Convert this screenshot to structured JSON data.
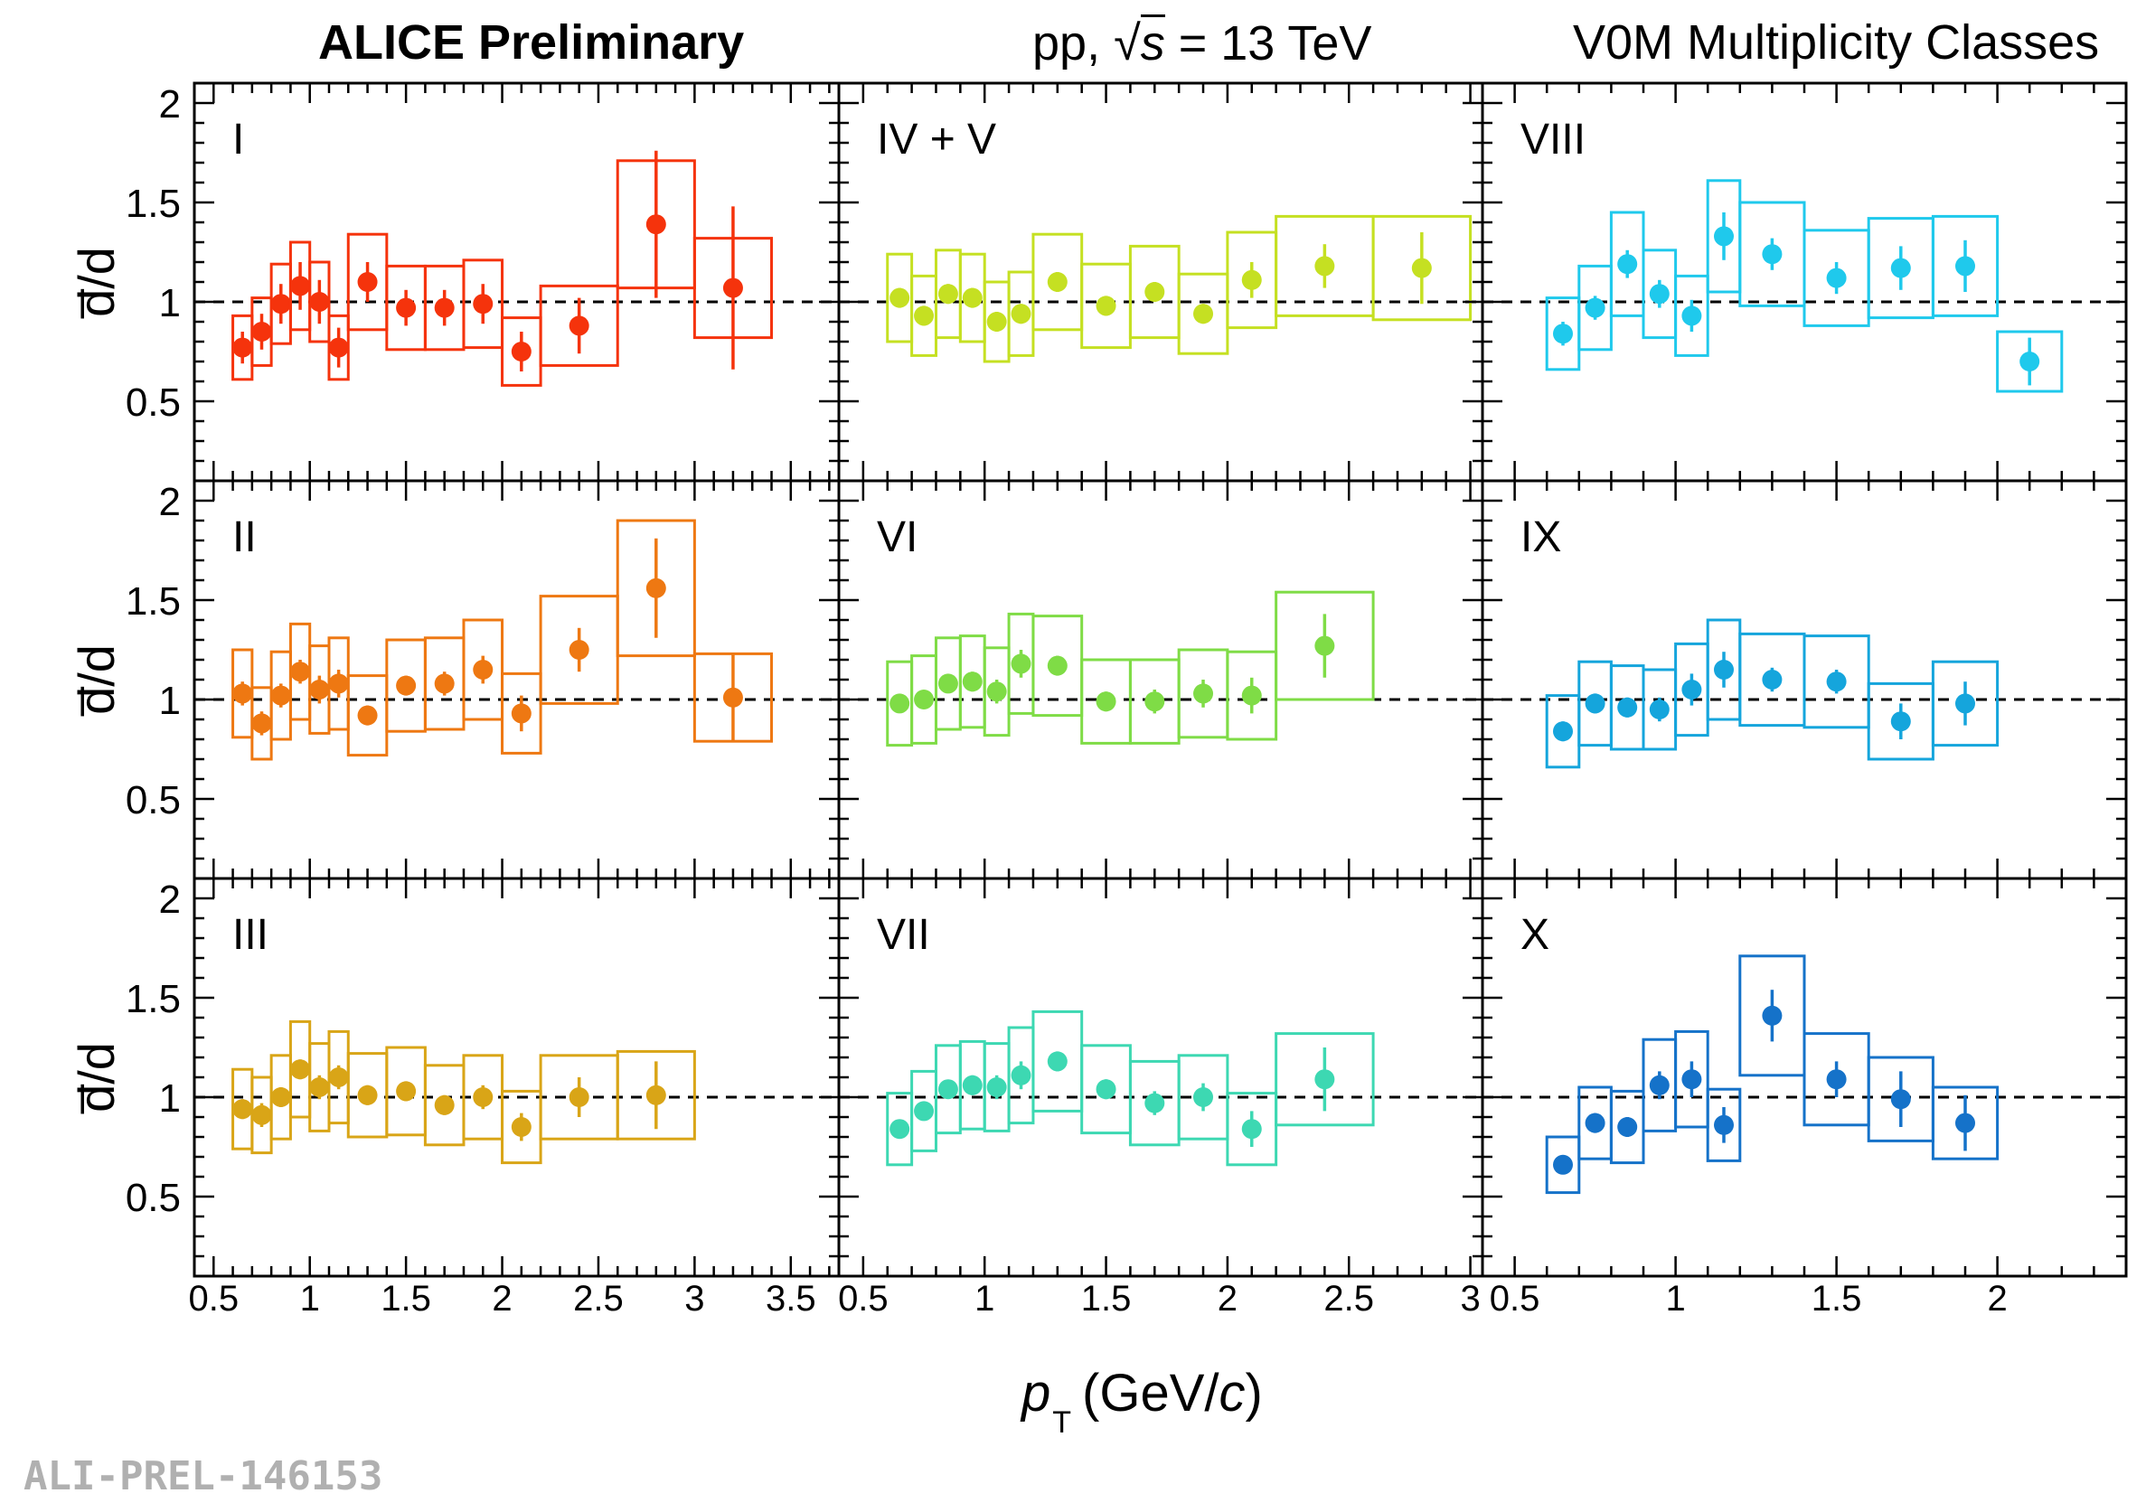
{
  "header": {
    "left": "ALICE Preliminary",
    "mid_prefix": "pp,",
    "mid_sqrt": "s",
    "mid_suffix": " = 13 TeV",
    "right": "V0M Multiplicity Classes"
  },
  "xlabel": {
    "p": "p",
    "sub": "T",
    "unit_open": "(GeV/",
    "unit_c": "c",
    "unit_close": ")"
  },
  "watermark": "ALI-PREL-146153",
  "chart_data": {
    "type": "scatter",
    "title": "ALICE Preliminary, pp, √s = 13 TeV, V0M Multiplicity Classes",
    "ylabel": "d̅/d",
    "xlabel": "pT (GeV/c)",
    "ylim": [
      0.1,
      2.1
    ],
    "yticks": [
      0.5,
      1,
      1.5,
      2
    ],
    "reference_line": 1,
    "columns": [
      {
        "xlim": [
          0.4,
          3.75
        ],
        "xticks": [
          0.5,
          1,
          1.5,
          2,
          2.5,
          3,
          3.5
        ],
        "xtick_labels": [
          "0.5",
          "1",
          "1.5",
          "2",
          "2.5",
          "3",
          "3.5"
        ]
      },
      {
        "xlim": [
          0.4,
          3.05
        ],
        "xticks": [
          0.5,
          1,
          1.5,
          2,
          2.5,
          3
        ],
        "xtick_labels": [
          "0.5",
          "1",
          "1.5",
          "2",
          "2.5",
          "3"
        ]
      },
      {
        "xlim": [
          0.4,
          2.4
        ],
        "xticks": [
          0.5,
          1,
          1.5,
          2
        ],
        "xtick_labels": [
          "0.5",
          "1",
          "1.5",
          "2"
        ]
      }
    ],
    "panels": [
      {
        "label": "I",
        "color": "#f5330c",
        "col": 0,
        "row": 0,
        "points": [
          {
            "x": 0.65,
            "y": 0.77,
            "stat": 0.08,
            "sys": 0.16,
            "w": 0.1
          },
          {
            "x": 0.75,
            "y": 0.85,
            "stat": 0.09,
            "sys": 0.17,
            "w": 0.1
          },
          {
            "x": 0.85,
            "y": 0.99,
            "stat": 0.1,
            "sys": 0.2,
            "w": 0.1
          },
          {
            "x": 0.95,
            "y": 1.08,
            "stat": 0.12,
            "sys": 0.22,
            "w": 0.1
          },
          {
            "x": 1.05,
            "y": 1.0,
            "stat": 0.11,
            "sys": 0.2,
            "w": 0.1
          },
          {
            "x": 1.15,
            "y": 0.77,
            "stat": 0.1,
            "sys": 0.16,
            "w": 0.1
          },
          {
            "x": 1.3,
            "y": 1.1,
            "stat": 0.1,
            "sys": 0.24,
            "w": 0.2
          },
          {
            "x": 1.5,
            "y": 0.97,
            "stat": 0.09,
            "sys": 0.21,
            "w": 0.2
          },
          {
            "x": 1.7,
            "y": 0.97,
            "stat": 0.09,
            "sys": 0.21,
            "w": 0.2
          },
          {
            "x": 1.9,
            "y": 0.99,
            "stat": 0.1,
            "sys": 0.22,
            "w": 0.2
          },
          {
            "x": 2.1,
            "y": 0.75,
            "stat": 0.1,
            "sys": 0.17,
            "w": 0.2
          },
          {
            "x": 2.4,
            "y": 0.88,
            "stat": 0.14,
            "sys": 0.2,
            "w": 0.4
          },
          {
            "x": 2.8,
            "y": 1.39,
            "stat": 0.37,
            "sys": 0.32,
            "w": 0.4
          },
          {
            "x": 3.2,
            "y": 1.07,
            "stat": 0.41,
            "sys": 0.25,
            "w": 0.4
          }
        ]
      },
      {
        "label": "IV + V",
        "color": "#c5e022",
        "col": 1,
        "row": 0,
        "points": [
          {
            "x": 0.65,
            "y": 1.02,
            "stat": 0.05,
            "sys": 0.22,
            "w": 0.1
          },
          {
            "x": 0.75,
            "y": 0.93,
            "stat": 0.05,
            "sys": 0.2,
            "w": 0.1
          },
          {
            "x": 0.85,
            "y": 1.04,
            "stat": 0.05,
            "sys": 0.22,
            "w": 0.1
          },
          {
            "x": 0.95,
            "y": 1.02,
            "stat": 0.05,
            "sys": 0.22,
            "w": 0.1
          },
          {
            "x": 1.05,
            "y": 0.9,
            "stat": 0.05,
            "sys": 0.2,
            "w": 0.1
          },
          {
            "x": 1.15,
            "y": 0.94,
            "stat": 0.05,
            "sys": 0.21,
            "w": 0.1
          },
          {
            "x": 1.3,
            "y": 1.1,
            "stat": 0.05,
            "sys": 0.24,
            "w": 0.2
          },
          {
            "x": 1.5,
            "y": 0.98,
            "stat": 0.05,
            "sys": 0.21,
            "w": 0.2
          },
          {
            "x": 1.7,
            "y": 1.05,
            "stat": 0.05,
            "sys": 0.23,
            "w": 0.2
          },
          {
            "x": 1.9,
            "y": 0.94,
            "stat": 0.05,
            "sys": 0.2,
            "w": 0.2
          },
          {
            "x": 2.1,
            "y": 1.11,
            "stat": 0.09,
            "sys": 0.24,
            "w": 0.2
          },
          {
            "x": 2.4,
            "y": 1.18,
            "stat": 0.11,
            "sys": 0.25,
            "w": 0.4
          },
          {
            "x": 2.8,
            "y": 1.17,
            "stat": 0.18,
            "sys": 0.26,
            "w": 0.4
          }
        ]
      },
      {
        "label": "VIII",
        "color": "#1fc9ec",
        "col": 2,
        "row": 0,
        "points": [
          {
            "x": 0.65,
            "y": 0.84,
            "stat": 0.06,
            "sys": 0.18,
            "w": 0.1
          },
          {
            "x": 0.75,
            "y": 0.97,
            "stat": 0.06,
            "sys": 0.21,
            "w": 0.1
          },
          {
            "x": 0.85,
            "y": 1.19,
            "stat": 0.07,
            "sys": 0.26,
            "w": 0.1
          },
          {
            "x": 0.95,
            "y": 1.04,
            "stat": 0.07,
            "sys": 0.22,
            "w": 0.1
          },
          {
            "x": 1.05,
            "y": 0.93,
            "stat": 0.08,
            "sys": 0.2,
            "w": 0.1
          },
          {
            "x": 1.15,
            "y": 1.33,
            "stat": 0.12,
            "sys": 0.28,
            "w": 0.1
          },
          {
            "x": 1.3,
            "y": 1.24,
            "stat": 0.08,
            "sys": 0.26,
            "w": 0.2
          },
          {
            "x": 1.5,
            "y": 1.12,
            "stat": 0.08,
            "sys": 0.24,
            "w": 0.2
          },
          {
            "x": 1.7,
            "y": 1.17,
            "stat": 0.11,
            "sys": 0.25,
            "w": 0.2
          },
          {
            "x": 1.9,
            "y": 1.18,
            "stat": 0.13,
            "sys": 0.25,
            "w": 0.2
          },
          {
            "x": 2.1,
            "y": 0.7,
            "stat": 0.12,
            "sys": 0.15,
            "w": 0.2
          }
        ]
      },
      {
        "label": "II",
        "color": "#ee7812",
        "col": 0,
        "row": 1,
        "points": [
          {
            "x": 0.65,
            "y": 1.03,
            "stat": 0.06,
            "sys": 0.22,
            "w": 0.1
          },
          {
            "x": 0.75,
            "y": 0.88,
            "stat": 0.06,
            "sys": 0.18,
            "w": 0.1
          },
          {
            "x": 0.85,
            "y": 1.02,
            "stat": 0.06,
            "sys": 0.22,
            "w": 0.1
          },
          {
            "x": 0.95,
            "y": 1.14,
            "stat": 0.06,
            "sys": 0.24,
            "w": 0.1
          },
          {
            "x": 1.05,
            "y": 1.05,
            "stat": 0.07,
            "sys": 0.22,
            "w": 0.1
          },
          {
            "x": 1.15,
            "y": 1.08,
            "stat": 0.07,
            "sys": 0.23,
            "w": 0.1
          },
          {
            "x": 1.3,
            "y": 0.92,
            "stat": 0.05,
            "sys": 0.2,
            "w": 0.2
          },
          {
            "x": 1.5,
            "y": 1.07,
            "stat": 0.05,
            "sys": 0.23,
            "w": 0.2
          },
          {
            "x": 1.7,
            "y": 1.08,
            "stat": 0.06,
            "sys": 0.23,
            "w": 0.2
          },
          {
            "x": 1.9,
            "y": 1.15,
            "stat": 0.07,
            "sys": 0.25,
            "w": 0.2
          },
          {
            "x": 2.1,
            "y": 0.93,
            "stat": 0.09,
            "sys": 0.2,
            "w": 0.2
          },
          {
            "x": 2.4,
            "y": 1.25,
            "stat": 0.11,
            "sys": 0.27,
            "w": 0.4
          },
          {
            "x": 2.8,
            "y": 1.56,
            "stat": 0.25,
            "sys": 0.34,
            "w": 0.4
          },
          {
            "x": 3.2,
            "y": 1.01,
            "stat": 0.22,
            "sys": 0.22,
            "w": 0.4
          }
        ]
      },
      {
        "label": "VI",
        "color": "#7fdc46",
        "col": 1,
        "row": 1,
        "points": [
          {
            "x": 0.65,
            "y": 0.98,
            "stat": 0.04,
            "sys": 0.21,
            "w": 0.1
          },
          {
            "x": 0.75,
            "y": 1.0,
            "stat": 0.04,
            "sys": 0.22,
            "w": 0.1
          },
          {
            "x": 0.85,
            "y": 1.08,
            "stat": 0.04,
            "sys": 0.23,
            "w": 0.1
          },
          {
            "x": 0.95,
            "y": 1.09,
            "stat": 0.05,
            "sys": 0.23,
            "w": 0.1
          },
          {
            "x": 1.05,
            "y": 1.04,
            "stat": 0.06,
            "sys": 0.22,
            "w": 0.1
          },
          {
            "x": 1.15,
            "y": 1.18,
            "stat": 0.07,
            "sys": 0.25,
            "w": 0.1
          },
          {
            "x": 1.3,
            "y": 1.17,
            "stat": 0.05,
            "sys": 0.25,
            "w": 0.2
          },
          {
            "x": 1.5,
            "y": 0.99,
            "stat": 0.05,
            "sys": 0.21,
            "w": 0.2
          },
          {
            "x": 1.7,
            "y": 0.99,
            "stat": 0.06,
            "sys": 0.21,
            "w": 0.2
          },
          {
            "x": 1.9,
            "y": 1.03,
            "stat": 0.07,
            "sys": 0.22,
            "w": 0.2
          },
          {
            "x": 2.1,
            "y": 1.02,
            "stat": 0.09,
            "sys": 0.22,
            "w": 0.2
          },
          {
            "x": 2.4,
            "y": 1.27,
            "stat": 0.16,
            "sys": 0.27,
            "w": 0.4
          }
        ]
      },
      {
        "label": "IX",
        "color": "#15a5dc",
        "col": 2,
        "row": 1,
        "points": [
          {
            "x": 0.65,
            "y": 0.84,
            "stat": 0.05,
            "sys": 0.18,
            "w": 0.1
          },
          {
            "x": 0.75,
            "y": 0.98,
            "stat": 0.05,
            "sys": 0.21,
            "w": 0.1
          },
          {
            "x": 0.85,
            "y": 0.96,
            "stat": 0.05,
            "sys": 0.21,
            "w": 0.1
          },
          {
            "x": 0.95,
            "y": 0.95,
            "stat": 0.06,
            "sys": 0.2,
            "w": 0.1
          },
          {
            "x": 1.05,
            "y": 1.05,
            "stat": 0.08,
            "sys": 0.23,
            "w": 0.1
          },
          {
            "x": 1.15,
            "y": 1.15,
            "stat": 0.09,
            "sys": 0.25,
            "w": 0.1
          },
          {
            "x": 1.3,
            "y": 1.1,
            "stat": 0.06,
            "sys": 0.23,
            "w": 0.2
          },
          {
            "x": 1.5,
            "y": 1.09,
            "stat": 0.06,
            "sys": 0.23,
            "w": 0.2
          },
          {
            "x": 1.7,
            "y": 0.89,
            "stat": 0.09,
            "sys": 0.19,
            "w": 0.2
          },
          {
            "x": 1.9,
            "y": 0.98,
            "stat": 0.11,
            "sys": 0.21,
            "w": 0.2
          }
        ]
      },
      {
        "label": "III",
        "color": "#d9a517",
        "col": 0,
        "row": 2,
        "points": [
          {
            "x": 0.65,
            "y": 0.94,
            "stat": 0.05,
            "sys": 0.2,
            "w": 0.1
          },
          {
            "x": 0.75,
            "y": 0.91,
            "stat": 0.06,
            "sys": 0.19,
            "w": 0.1
          },
          {
            "x": 0.85,
            "y": 1.0,
            "stat": 0.05,
            "sys": 0.21,
            "w": 0.1
          },
          {
            "x": 0.95,
            "y": 1.14,
            "stat": 0.05,
            "sys": 0.24,
            "w": 0.1
          },
          {
            "x": 1.05,
            "y": 1.05,
            "stat": 0.06,
            "sys": 0.22,
            "w": 0.1
          },
          {
            "x": 1.15,
            "y": 1.1,
            "stat": 0.06,
            "sys": 0.23,
            "w": 0.1
          },
          {
            "x": 1.3,
            "y": 1.01,
            "stat": 0.05,
            "sys": 0.21,
            "w": 0.2
          },
          {
            "x": 1.5,
            "y": 1.03,
            "stat": 0.05,
            "sys": 0.22,
            "w": 0.2
          },
          {
            "x": 1.7,
            "y": 0.96,
            "stat": 0.05,
            "sys": 0.2,
            "w": 0.2
          },
          {
            "x": 1.9,
            "y": 1.0,
            "stat": 0.06,
            "sys": 0.21,
            "w": 0.2
          },
          {
            "x": 2.1,
            "y": 0.85,
            "stat": 0.07,
            "sys": 0.18,
            "w": 0.2
          },
          {
            "x": 2.4,
            "y": 1.0,
            "stat": 0.1,
            "sys": 0.21,
            "w": 0.4
          },
          {
            "x": 2.8,
            "y": 1.01,
            "stat": 0.17,
            "sys": 0.22,
            "w": 0.4
          }
        ]
      },
      {
        "label": "VII",
        "color": "#3dd8b2",
        "col": 1,
        "row": 2,
        "points": [
          {
            "x": 0.65,
            "y": 0.84,
            "stat": 0.04,
            "sys": 0.18,
            "w": 0.1
          },
          {
            "x": 0.75,
            "y": 0.93,
            "stat": 0.04,
            "sys": 0.2,
            "w": 0.1
          },
          {
            "x": 0.85,
            "y": 1.04,
            "stat": 0.04,
            "sys": 0.22,
            "w": 0.1
          },
          {
            "x": 0.95,
            "y": 1.06,
            "stat": 0.05,
            "sys": 0.22,
            "w": 0.1
          },
          {
            "x": 1.05,
            "y": 1.05,
            "stat": 0.06,
            "sys": 0.22,
            "w": 0.1
          },
          {
            "x": 1.15,
            "y": 1.11,
            "stat": 0.07,
            "sys": 0.24,
            "w": 0.1
          },
          {
            "x": 1.3,
            "y": 1.18,
            "stat": 0.05,
            "sys": 0.25,
            "w": 0.2
          },
          {
            "x": 1.5,
            "y": 1.04,
            "stat": 0.05,
            "sys": 0.22,
            "w": 0.2
          },
          {
            "x": 1.7,
            "y": 0.97,
            "stat": 0.06,
            "sys": 0.21,
            "w": 0.2
          },
          {
            "x": 1.9,
            "y": 1.0,
            "stat": 0.07,
            "sys": 0.21,
            "w": 0.2
          },
          {
            "x": 2.1,
            "y": 0.84,
            "stat": 0.09,
            "sys": 0.18,
            "w": 0.2
          },
          {
            "x": 2.4,
            "y": 1.09,
            "stat": 0.16,
            "sys": 0.23,
            "w": 0.4
          }
        ]
      },
      {
        "label": "X",
        "color": "#1572c9",
        "col": 2,
        "row": 2,
        "points": [
          {
            "x": 0.65,
            "y": 0.66,
            "stat": 0.04,
            "sys": 0.14,
            "w": 0.1
          },
          {
            "x": 0.75,
            "y": 0.87,
            "stat": 0.05,
            "sys": 0.18,
            "w": 0.1
          },
          {
            "x": 0.85,
            "y": 0.85,
            "stat": 0.05,
            "sys": 0.18,
            "w": 0.1
          },
          {
            "x": 0.95,
            "y": 1.06,
            "stat": 0.07,
            "sys": 0.23,
            "w": 0.1
          },
          {
            "x": 1.05,
            "y": 1.09,
            "stat": 0.09,
            "sys": 0.24,
            "w": 0.1
          },
          {
            "x": 1.15,
            "y": 0.86,
            "stat": 0.09,
            "sys": 0.18,
            "w": 0.1
          },
          {
            "x": 1.3,
            "y": 1.41,
            "stat": 0.13,
            "sys": 0.3,
            "w": 0.2
          },
          {
            "x": 1.5,
            "y": 1.09,
            "stat": 0.09,
            "sys": 0.23,
            "w": 0.2
          },
          {
            "x": 1.7,
            "y": 0.99,
            "stat": 0.14,
            "sys": 0.21,
            "w": 0.2
          },
          {
            "x": 1.9,
            "y": 0.87,
            "stat": 0.14,
            "sys": 0.18,
            "w": 0.2
          }
        ]
      }
    ]
  }
}
